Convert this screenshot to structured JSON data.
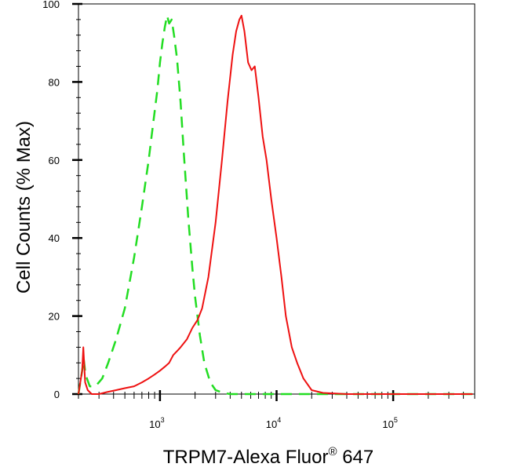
{
  "chart_data": {
    "type": "line",
    "xlabel": "TRPM7-Alexa Fluor® 647",
    "xlabel_parts": {
      "main": "TRPM7-Alexa Fluor",
      "sup": "®",
      "tail": " 647"
    },
    "ylabel": "Cell Counts (% Max)",
    "x_scale": "log",
    "xlim": [
      200,
      500000
    ],
    "ylim": [
      0,
      100
    ],
    "y_ticks": [
      0,
      20,
      40,
      60,
      80,
      100
    ],
    "x_ticks": [
      {
        "value": 1000,
        "base": "10",
        "exp": "3"
      },
      {
        "value": 10000,
        "base": "10",
        "exp": "4"
      },
      {
        "value": 100000,
        "base": "10",
        "exp": "5"
      }
    ],
    "grid": false,
    "legend": "none",
    "series": [
      {
        "color": "#22dd22",
        "style": "dashed",
        "x": [
          200,
          215,
          222,
          230,
          250,
          280,
          320,
          360,
          420,
          500,
          600,
          700,
          800,
          880,
          950,
          1000,
          1050,
          1100,
          1150,
          1200,
          1260,
          1320,
          1400,
          1500,
          1600,
          1750,
          1900,
          2000,
          2200,
          2400,
          2700,
          3000,
          3500,
          4000,
          6000,
          10000,
          20000,
          100000,
          480000
        ],
        "y": [
          0,
          6,
          9,
          5,
          2,
          2,
          4,
          8,
          14,
          22,
          35,
          48,
          60,
          70,
          78,
          85,
          90,
          94,
          97,
          95,
          96,
          92,
          86,
          75,
          62,
          45,
          32,
          25,
          15,
          8,
          3,
          1,
          0.3,
          0,
          0,
          0,
          0,
          0,
          0
        ]
      },
      {
        "color": "#ee1111",
        "style": "solid",
        "x": [
          200,
          215,
          220,
          228,
          240,
          260,
          300,
          350,
          420,
          500,
          600,
          700,
          800,
          900,
          1000,
          1100,
          1200,
          1300,
          1400,
          1500,
          1700,
          1900,
          2100,
          2300,
          2600,
          3000,
          3400,
          3800,
          4200,
          4500,
          4800,
          5000,
          5300,
          5700,
          6100,
          6500,
          7000,
          7600,
          8200,
          9000,
          10000,
          11000,
          12000,
          13500,
          15000,
          17000,
          20000,
          25000,
          40000,
          100000,
          480000
        ],
        "y": [
          0,
          6,
          12,
          3,
          1,
          0,
          0,
          0.5,
          1,
          1.5,
          2,
          3,
          4,
          5,
          6,
          7,
          8,
          10,
          11,
          12,
          14,
          17,
          19,
          22,
          30,
          44,
          60,
          75,
          87,
          93,
          96,
          97,
          93,
          85,
          83,
          84,
          76,
          66,
          60,
          50,
          40,
          30,
          20,
          12,
          8,
          4,
          1,
          0.3,
          0,
          0,
          0
        ]
      }
    ]
  }
}
